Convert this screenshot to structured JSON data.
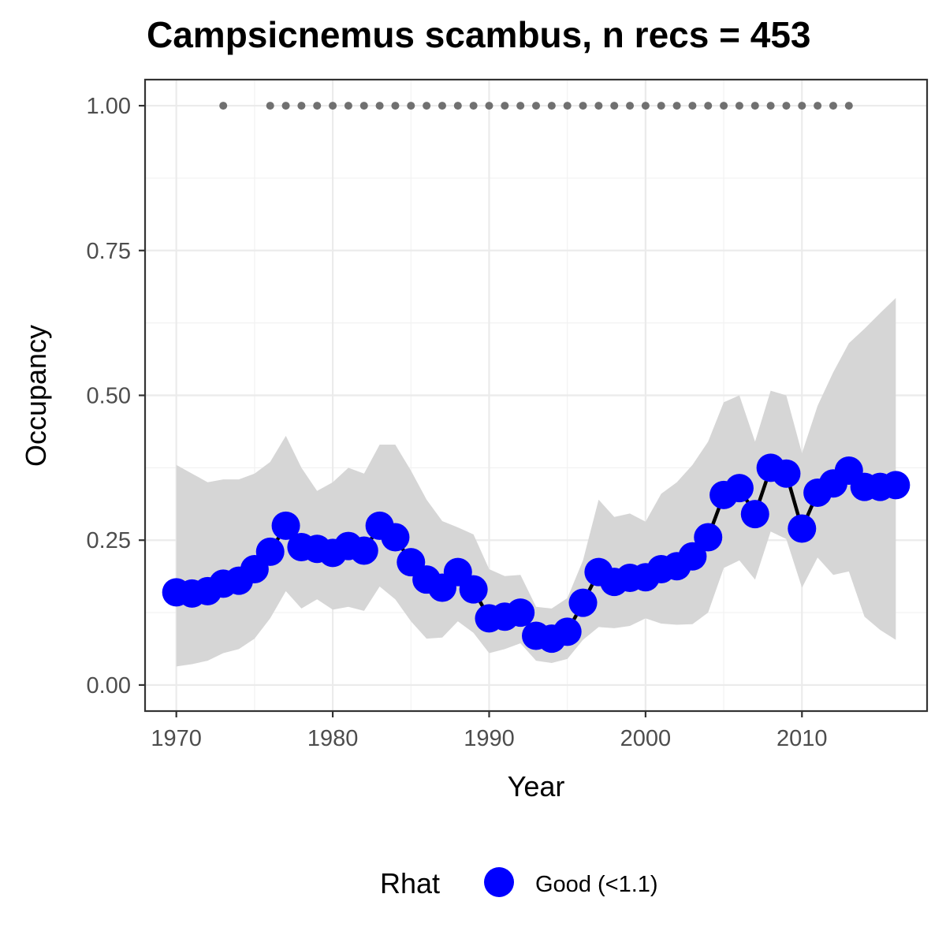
{
  "chart_data": {
    "type": "line",
    "title": "Campsicnemus scambus, n recs = 453",
    "xlabel": "Year",
    "ylabel": "Occupancy",
    "xlim": [
      1968,
      2018
    ],
    "ylim": [
      -0.045,
      1.045
    ],
    "x_ticks": [
      1970,
      1980,
      1990,
      2000,
      2010
    ],
    "x_tick_labels": [
      "1970",
      "1980",
      "1990",
      "2000",
      "2010"
    ],
    "y_ticks": [
      0,
      0.25,
      0.5,
      0.75,
      1.0
    ],
    "y_tick_labels": [
      "0.00",
      "0.25",
      "0.50",
      "0.75",
      "1.00"
    ],
    "grid": true,
    "legend": {
      "title": "Rhat",
      "placement": "bottom",
      "entries": [
        {
          "label": "Good (<1.1)",
          "color": "#0000ff"
        }
      ]
    },
    "colors": {
      "points": "#0000ff",
      "line": "#000000",
      "ribbon": "#d6d6d6",
      "record_dots": "#707070"
    },
    "series": [
      {
        "x": [
          1970,
          1971,
          1972,
          1973,
          1974,
          1975,
          1976,
          1977,
          1978,
          1979,
          1980,
          1981,
          1982,
          1983,
          1984,
          1985,
          1986,
          1987,
          1988,
          1989,
          1990,
          1991,
          1992,
          1993,
          1994,
          1995,
          1996,
          1997,
          1998,
          1999,
          2000,
          2001,
          2002,
          2003,
          2004,
          2005,
          2006,
          2007,
          2008,
          2009,
          2010,
          2011,
          2012,
          2013,
          2014,
          2015,
          2016
        ],
        "y": [
          0.16,
          0.158,
          0.162,
          0.175,
          0.18,
          0.2,
          0.23,
          0.275,
          0.238,
          0.235,
          0.228,
          0.24,
          0.232,
          0.275,
          0.255,
          0.212,
          0.182,
          0.168,
          0.195,
          0.165,
          0.115,
          0.118,
          0.125,
          0.085,
          0.08,
          0.092,
          0.142,
          0.195,
          0.178,
          0.185,
          0.186,
          0.2,
          0.205,
          0.222,
          0.255,
          0.328,
          0.34,
          0.295,
          0.375,
          0.365,
          0.27,
          0.332,
          0.348,
          0.37,
          0.342,
          0.342,
          0.345
        ],
        "lower": [
          0.032,
          0.036,
          0.042,
          0.055,
          0.062,
          0.08,
          0.115,
          0.162,
          0.132,
          0.148,
          0.13,
          0.135,
          0.128,
          0.17,
          0.148,
          0.11,
          0.08,
          0.082,
          0.11,
          0.09,
          0.055,
          0.062,
          0.072,
          0.042,
          0.038,
          0.045,
          0.078,
          0.1,
          0.098,
          0.102,
          0.115,
          0.106,
          0.104,
          0.105,
          0.125,
          0.202,
          0.215,
          0.182,
          0.265,
          0.252,
          0.168,
          0.22,
          0.19,
          0.196,
          0.118,
          0.095,
          0.078
        ],
        "upper": [
          0.38,
          0.365,
          0.35,
          0.355,
          0.355,
          0.365,
          0.385,
          0.43,
          0.375,
          0.335,
          0.35,
          0.375,
          0.365,
          0.415,
          0.415,
          0.37,
          0.32,
          0.283,
          0.272,
          0.26,
          0.2,
          0.188,
          0.19,
          0.135,
          0.132,
          0.15,
          0.215,
          0.32,
          0.29,
          0.296,
          0.282,
          0.33,
          0.35,
          0.38,
          0.42,
          0.488,
          0.5,
          0.42,
          0.508,
          0.5,
          0.4,
          0.482,
          0.54,
          0.59,
          0.615,
          0.642,
          0.668
        ]
      }
    ],
    "records": {
      "y": 1.0,
      "years": [
        1973,
        1976,
        1977,
        1978,
        1979,
        1980,
        1981,
        1982,
        1983,
        1984,
        1985,
        1986,
        1987,
        1988,
        1989,
        1990,
        1991,
        1992,
        1993,
        1994,
        1995,
        1996,
        1997,
        1998,
        1999,
        2000,
        2001,
        2002,
        2003,
        2004,
        2005,
        2006,
        2007,
        2008,
        2009,
        2010,
        2011,
        2012,
        2013
      ]
    }
  }
}
